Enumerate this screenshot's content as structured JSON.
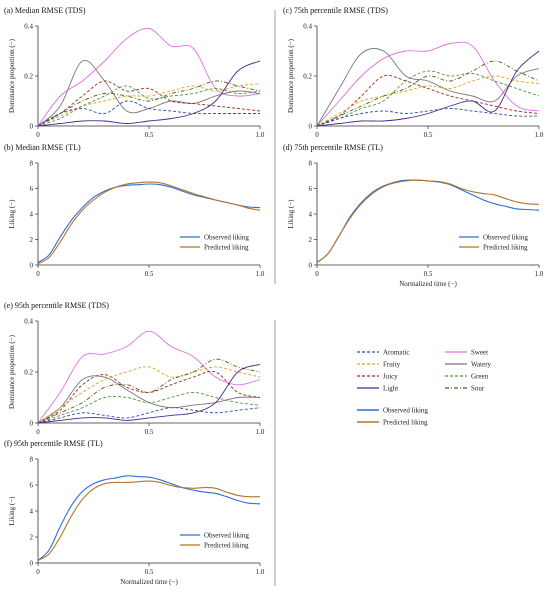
{
  "figure": {
    "attribute_legend": {
      "left": [
        {
          "name": "Aromatic",
          "color": "#2b4fa8",
          "dash": "3,2"
        },
        {
          "name": "Fruity",
          "color": "#d9a520",
          "dash": "3,2"
        },
        {
          "name": "Juicy",
          "color": "#a0281e",
          "dash": "3,2"
        },
        {
          "name": "Light",
          "color": "#4a2a8c",
          "dash": ""
        }
      ],
      "right": [
        {
          "name": "Sweet",
          "color": "#e070e6",
          "dash": ""
        },
        {
          "name": "Watery",
          "color": "#777777",
          "dash": ""
        },
        {
          "name": "Green",
          "color": "#4a9a3a",
          "dash": "3,2"
        },
        {
          "name": "Sour",
          "color": "#5a5a20",
          "dash": "4,2,1,2"
        }
      ]
    },
    "liking_legend": [
      {
        "name": "Observed liking",
        "color": "#2e6fd1"
      },
      {
        "name": "Predicted liking",
        "color": "#b5742a"
      }
    ],
    "colors": {
      "Aromatic": "#2b4fa8",
      "Fruity": "#d9a520",
      "Juicy": "#a0281e",
      "Light": "#4a2a8c",
      "Sweet": "#e070e6",
      "Watery": "#777777",
      "Green": "#4a9a3a",
      "Sour": "#5a5a20",
      "Observed liking": "#2e6fd1",
      "Predicted liking": "#b5742a"
    }
  },
  "chart_data": [
    {
      "id": "a",
      "type": "line",
      "title": "(a) Median RMSE (TDS)",
      "xlabel": "",
      "ylabel": "Dominance proportion (−)",
      "xlim": [
        0,
        1
      ],
      "ylim": [
        0,
        0.4
      ],
      "xticks": [
        "0",
        "0.5",
        "1.0"
      ],
      "yticks": [
        "0",
        "0.2",
        "0.4"
      ],
      "x": [
        0,
        0.1,
        0.2,
        0.3,
        0.4,
        0.5,
        0.6,
        0.7,
        0.8,
        0.9,
        1.0
      ],
      "series": [
        {
          "name": "Sweet",
          "values": [
            0,
            0.12,
            0.18,
            0.26,
            0.35,
            0.39,
            0.32,
            0.31,
            0.15,
            0.12,
            0.13
          ]
        },
        {
          "name": "Watery",
          "values": [
            0,
            0.08,
            0.26,
            0.18,
            0.06,
            0.07,
            0.1,
            0.09,
            0.12,
            0.14,
            0.13
          ]
        },
        {
          "name": "Juicy",
          "values": [
            0,
            0.05,
            0.12,
            0.18,
            0.14,
            0.15,
            0.1,
            0.09,
            0.08,
            0.07,
            0.06
          ]
        },
        {
          "name": "Fruity",
          "values": [
            0,
            0.04,
            0.08,
            0.1,
            0.12,
            0.12,
            0.14,
            0.16,
            0.14,
            0.16,
            0.17
          ]
        },
        {
          "name": "Green",
          "values": [
            0,
            0.03,
            0.08,
            0.12,
            0.16,
            0.11,
            0.12,
            0.13,
            0.15,
            0.13,
            0.14
          ]
        },
        {
          "name": "Sour",
          "values": [
            0,
            0.05,
            0.1,
            0.13,
            0.12,
            0.1,
            0.13,
            0.15,
            0.18,
            0.16,
            0.14
          ]
        },
        {
          "name": "Aromatic",
          "values": [
            0,
            0.05,
            0.07,
            0.05,
            0.1,
            0.07,
            0.06,
            0.05,
            0.05,
            0.05,
            0.05
          ]
        },
        {
          "name": "Light",
          "values": [
            0,
            0.01,
            0.02,
            0.02,
            0.01,
            0.02,
            0.03,
            0.05,
            0.1,
            0.22,
            0.26
          ]
        }
      ]
    },
    {
      "id": "b",
      "type": "line",
      "title": "(b) Median RMSE (TL)",
      "xlabel": "",
      "ylabel": "Liking (−)",
      "xlim": [
        0,
        1
      ],
      "ylim": [
        0,
        8
      ],
      "xticks": [
        "0",
        "0.5",
        "1.0"
      ],
      "yticks": [
        "0",
        "2",
        "4",
        "6",
        "8"
      ],
      "x": [
        0,
        0.05,
        0.1,
        0.15,
        0.2,
        0.25,
        0.3,
        0.35,
        0.4,
        0.45,
        0.5,
        0.55,
        0.6,
        0.65,
        0.7,
        0.75,
        0.8,
        0.85,
        0.9,
        0.95,
        1.0
      ],
      "series": [
        {
          "name": "Observed liking",
          "values": [
            0.2,
            0.8,
            2.2,
            3.5,
            4.5,
            5.3,
            5.8,
            6.1,
            6.25,
            6.3,
            6.35,
            6.3,
            6.1,
            5.8,
            5.5,
            5.3,
            5.1,
            4.9,
            4.7,
            4.55,
            4.5
          ]
        },
        {
          "name": "Predicted liking",
          "values": [
            0.1,
            0.6,
            1.8,
            3.2,
            4.3,
            5.1,
            5.7,
            6.1,
            6.35,
            6.45,
            6.5,
            6.45,
            6.2,
            5.9,
            5.6,
            5.35,
            5.1,
            4.9,
            4.7,
            4.45,
            4.3
          ]
        }
      ]
    },
    {
      "id": "c",
      "type": "line",
      "title": "(c) 75th percentile RMSE (TDS)",
      "xlabel": "",
      "ylabel": "Dominance proportion (−)",
      "xlim": [
        0,
        1
      ],
      "ylim": [
        0,
        0.4
      ],
      "xticks": [
        "0",
        "0.5",
        "1.0"
      ],
      "yticks": [
        "0",
        "0.2",
        "0.4"
      ],
      "x": [
        0,
        0.1,
        0.2,
        0.3,
        0.4,
        0.5,
        0.6,
        0.7,
        0.8,
        0.9,
        1.0
      ],
      "series": [
        {
          "name": "Sweet",
          "values": [
            0,
            0.1,
            0.2,
            0.27,
            0.3,
            0.3,
            0.33,
            0.32,
            0.18,
            0.08,
            0.06
          ]
        },
        {
          "name": "Watery",
          "values": [
            0,
            0.15,
            0.29,
            0.3,
            0.2,
            0.18,
            0.14,
            0.12,
            0.1,
            0.2,
            0.23
          ]
        },
        {
          "name": "Juicy",
          "values": [
            0,
            0.04,
            0.12,
            0.2,
            0.18,
            0.15,
            0.12,
            0.1,
            0.08,
            0.06,
            0.05
          ]
        },
        {
          "name": "Green",
          "values": [
            0,
            0.03,
            0.07,
            0.1,
            0.18,
            0.22,
            0.2,
            0.21,
            0.18,
            0.15,
            0.12
          ]
        },
        {
          "name": "Fruity",
          "values": [
            0,
            0.05,
            0.1,
            0.12,
            0.14,
            0.16,
            0.15,
            0.18,
            0.2,
            0.18,
            0.17
          ]
        },
        {
          "name": "Sour",
          "values": [
            0,
            0.04,
            0.08,
            0.12,
            0.15,
            0.2,
            0.18,
            0.22,
            0.26,
            0.22,
            0.18
          ]
        },
        {
          "name": "Aromatic",
          "values": [
            0,
            0.03,
            0.05,
            0.06,
            0.05,
            0.06,
            0.07,
            0.06,
            0.05,
            0.04,
            0.04
          ]
        },
        {
          "name": "Light",
          "values": [
            0,
            0.01,
            0.02,
            0.02,
            0.03,
            0.05,
            0.08,
            0.1,
            0.06,
            0.22,
            0.3
          ]
        }
      ]
    },
    {
      "id": "d",
      "type": "line",
      "title": "(d) 75th percentile RMSE (TL)",
      "xlabel": "Normalized time (−)",
      "ylabel": "Liking (−)",
      "xlim": [
        0,
        1
      ],
      "ylim": [
        0,
        8
      ],
      "xticks": [
        "0",
        "0.5",
        "1.0"
      ],
      "yticks": [
        "0",
        "2",
        "4",
        "6",
        "8"
      ],
      "x": [
        0,
        0.05,
        0.1,
        0.15,
        0.2,
        0.25,
        0.3,
        0.35,
        0.4,
        0.45,
        0.5,
        0.55,
        0.6,
        0.65,
        0.7,
        0.75,
        0.8,
        0.85,
        0.9,
        0.95,
        1.0
      ],
      "series": [
        {
          "name": "Observed liking",
          "values": [
            0.2,
            0.9,
            2.3,
            3.8,
            4.9,
            5.7,
            6.2,
            6.5,
            6.65,
            6.65,
            6.6,
            6.5,
            6.3,
            5.9,
            5.5,
            5.1,
            4.8,
            4.6,
            4.4,
            4.35,
            4.3
          ]
        },
        {
          "name": "Predicted liking",
          "values": [
            0.2,
            0.9,
            2.3,
            3.7,
            4.8,
            5.6,
            6.15,
            6.45,
            6.6,
            6.65,
            6.6,
            6.55,
            6.35,
            6.0,
            5.75,
            5.6,
            5.5,
            5.2,
            4.95,
            4.8,
            4.75
          ]
        }
      ]
    },
    {
      "id": "e",
      "type": "line",
      "title": "(e) 95th percentile RMSE (TDS)",
      "xlabel": "",
      "ylabel": "Dominance proportion (−)",
      "xlim": [
        0,
        1
      ],
      "ylim": [
        0,
        0.4
      ],
      "xticks": [
        "0",
        "0.5",
        "1.0"
      ],
      "yticks": [
        "0",
        "0.2",
        "0.4"
      ],
      "x": [
        0,
        0.1,
        0.2,
        0.3,
        0.4,
        0.5,
        0.6,
        0.7,
        0.8,
        0.9,
        1.0
      ],
      "series": [
        {
          "name": "Sweet",
          "values": [
            0,
            0.12,
            0.26,
            0.27,
            0.3,
            0.36,
            0.3,
            0.26,
            0.18,
            0.15,
            0.17
          ]
        },
        {
          "name": "Watery",
          "values": [
            0,
            0.06,
            0.17,
            0.18,
            0.13,
            0.08,
            0.06,
            0.07,
            0.08,
            0.1,
            0.1
          ]
        },
        {
          "name": "Juicy",
          "values": [
            0,
            0.05,
            0.15,
            0.19,
            0.14,
            0.12,
            0.15,
            0.18,
            0.2,
            0.12,
            0.1
          ]
        },
        {
          "name": "Fruity",
          "values": [
            0,
            0.06,
            0.12,
            0.17,
            0.2,
            0.22,
            0.18,
            0.2,
            0.22,
            0.2,
            0.18
          ]
        },
        {
          "name": "Green",
          "values": [
            0,
            0.03,
            0.06,
            0.1,
            0.1,
            0.08,
            0.1,
            0.12,
            0.1,
            0.08,
            0.07
          ]
        },
        {
          "name": "Sour",
          "values": [
            0,
            0.04,
            0.08,
            0.14,
            0.15,
            0.12,
            0.17,
            0.2,
            0.25,
            0.22,
            0.2
          ]
        },
        {
          "name": "Aromatic",
          "values": [
            0,
            0.02,
            0.04,
            0.03,
            0.02,
            0.04,
            0.06,
            0.05,
            0.04,
            0.05,
            0.06
          ]
        },
        {
          "name": "Light",
          "values": [
            0,
            0.01,
            0.02,
            0.02,
            0.01,
            0.02,
            0.03,
            0.04,
            0.08,
            0.2,
            0.23
          ]
        }
      ]
    },
    {
      "id": "f",
      "type": "line",
      "title": "(f) 95th percentile RMSE (TL)",
      "xlabel": "Normalized time (−)",
      "ylabel": "Liking (−)",
      "xlim": [
        0,
        1
      ],
      "ylim": [
        0,
        8
      ],
      "xticks": [
        "0",
        "0.5",
        "1.0"
      ],
      "yticks": [
        "0",
        "2",
        "4",
        "6",
        "8"
      ],
      "x": [
        0,
        0.05,
        0.1,
        0.15,
        0.2,
        0.25,
        0.3,
        0.35,
        0.4,
        0.45,
        0.5,
        0.55,
        0.6,
        0.65,
        0.7,
        0.75,
        0.8,
        0.85,
        0.9,
        0.95,
        1.0
      ],
      "series": [
        {
          "name": "Observed liking",
          "values": [
            0.2,
            1.0,
            2.8,
            4.4,
            5.5,
            6.1,
            6.4,
            6.55,
            6.7,
            6.65,
            6.6,
            6.4,
            6.1,
            5.8,
            5.6,
            5.45,
            5.35,
            5.1,
            4.8,
            4.6,
            4.55
          ]
        },
        {
          "name": "Predicted liking",
          "values": [
            0.2,
            0.7,
            2.0,
            3.6,
            4.9,
            5.7,
            6.1,
            6.2,
            6.2,
            6.25,
            6.3,
            6.2,
            5.95,
            5.8,
            5.75,
            5.8,
            5.75,
            5.45,
            5.2,
            5.1,
            5.1
          ]
        }
      ]
    }
  ]
}
